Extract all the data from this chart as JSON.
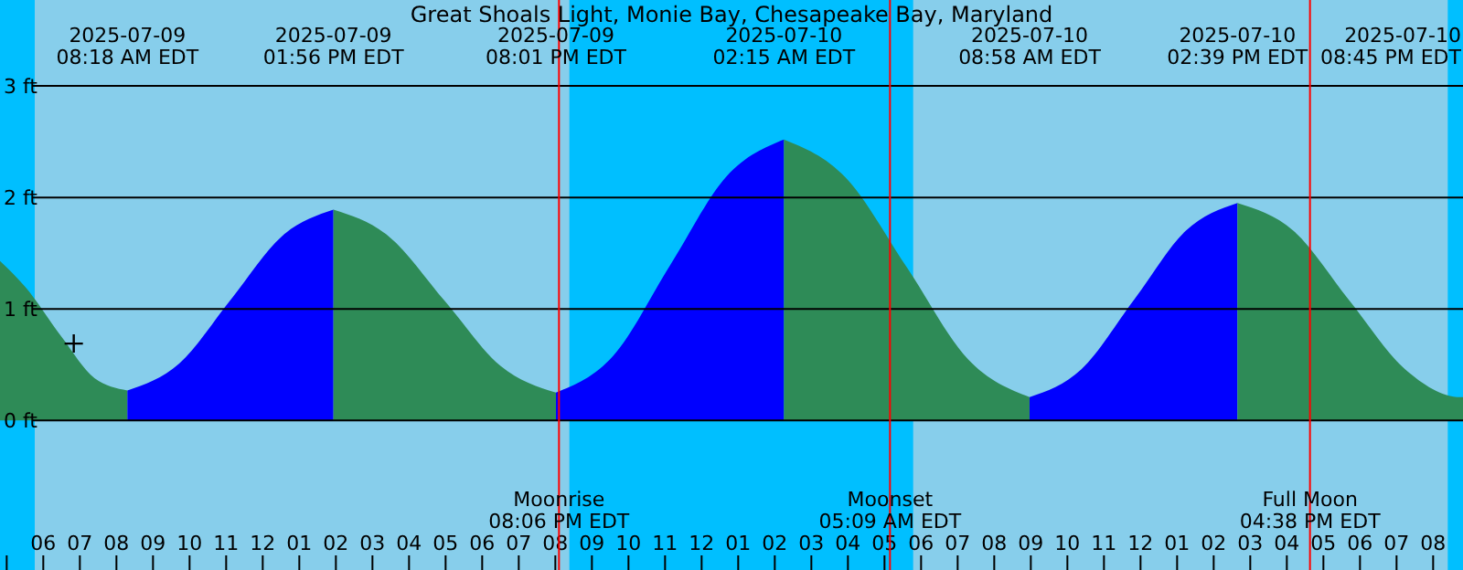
{
  "chart_data": {
    "type": "area",
    "title": "Great Shoals Light, Monie Bay, Chesapeake Bay, Maryland",
    "xlim": [
      "2025-07-09T04:49",
      "2025-07-10T20:49"
    ],
    "ylim": [
      -1.34,
      3.77
    ],
    "yticks": [
      {
        "value": 0,
        "label": "0 ft"
      },
      {
        "value": 1,
        "label": "1 ft"
      },
      {
        "value": 2,
        "label": "2 ft"
      },
      {
        "value": 3,
        "label": "3 ft"
      }
    ],
    "xticks": [
      {
        "value": "2025-07-09T05:00",
        "label": null
      },
      {
        "value": "2025-07-09T06:00",
        "label": "06"
      },
      {
        "value": "2025-07-09T07:00",
        "label": "07"
      },
      {
        "value": "2025-07-09T08:00",
        "label": "08"
      },
      {
        "value": "2025-07-09T09:00",
        "label": "09"
      },
      {
        "value": "2025-07-09T10:00",
        "label": "10"
      },
      {
        "value": "2025-07-09T11:00",
        "label": "11"
      },
      {
        "value": "2025-07-09T12:00",
        "label": "12"
      },
      {
        "value": "2025-07-09T13:00",
        "label": "01"
      },
      {
        "value": "2025-07-09T14:00",
        "label": "02"
      },
      {
        "value": "2025-07-09T15:00",
        "label": "03"
      },
      {
        "value": "2025-07-09T16:00",
        "label": "04"
      },
      {
        "value": "2025-07-09T17:00",
        "label": "05"
      },
      {
        "value": "2025-07-09T18:00",
        "label": "06"
      },
      {
        "value": "2025-07-09T19:00",
        "label": "07"
      },
      {
        "value": "2025-07-09T20:00",
        "label": "08"
      },
      {
        "value": "2025-07-09T21:00",
        "label": "09"
      },
      {
        "value": "2025-07-09T22:00",
        "label": "10"
      },
      {
        "value": "2025-07-09T23:00",
        "label": "11"
      },
      {
        "value": "2025-07-10T00:00",
        "label": "12"
      },
      {
        "value": "2025-07-10T01:00",
        "label": "01"
      },
      {
        "value": "2025-07-10T02:00",
        "label": "02"
      },
      {
        "value": "2025-07-10T03:00",
        "label": "03"
      },
      {
        "value": "2025-07-10T04:00",
        "label": "04"
      },
      {
        "value": "2025-07-10T05:00",
        "label": "05"
      },
      {
        "value": "2025-07-10T06:00",
        "label": "06"
      },
      {
        "value": "2025-07-10T07:00",
        "label": "07"
      },
      {
        "value": "2025-07-10T08:00",
        "label": "08"
      },
      {
        "value": "2025-07-10T09:00",
        "label": "09"
      },
      {
        "value": "2025-07-10T10:00",
        "label": "10"
      },
      {
        "value": "2025-07-10T11:00",
        "label": "11"
      },
      {
        "value": "2025-07-10T12:00",
        "label": "12"
      },
      {
        "value": "2025-07-10T13:00",
        "label": "01"
      },
      {
        "value": "2025-07-10T14:00",
        "label": "02"
      },
      {
        "value": "2025-07-10T15:00",
        "label": "03"
      },
      {
        "value": "2025-07-10T16:00",
        "label": "04"
      },
      {
        "value": "2025-07-10T17:00",
        "label": "05"
      },
      {
        "value": "2025-07-10T18:00",
        "label": "06"
      },
      {
        "value": "2025-07-10T19:00",
        "label": "07"
      },
      {
        "value": "2025-07-10T20:00",
        "label": "08"
      }
    ],
    "grid": "y",
    "bands": [
      {
        "axis": "x",
        "from": "2025-07-09T04:49",
        "to": "2025-07-09T05:46",
        "color": "#00bfff"
      },
      {
        "axis": "x",
        "from": "2025-07-09T20:23",
        "to": "2025-07-10T05:47",
        "color": "#00bfff"
      },
      {
        "axis": "x",
        "from": "2025-07-10T20:24",
        "to": "2025-07-10T20:49",
        "color": "#00bfff"
      }
    ],
    "series": [
      {
        "color": "#2e8b57",
        "x": [
          "2025-07-09T04:49",
          "2025-07-09T05:30",
          "2025-07-09T06:30",
          "2025-07-09T07:24",
          "2025-07-09T08:18"
        ],
        "values": [
          1.43,
          1.2,
          0.75,
          0.38,
          0.27
        ]
      },
      {
        "color": "#0000ff",
        "x": [
          "2025-07-09T08:18",
          "2025-07-09T09:43",
          "2025-07-09T11:07",
          "2025-07-09T12:31",
          "2025-07-09T13:56"
        ],
        "values": [
          0.27,
          0.51,
          1.08,
          1.65,
          1.89
        ]
      },
      {
        "color": "#2e8b57",
        "x": [
          "2025-07-09T13:56",
          "2025-07-09T15:27",
          "2025-07-09T16:59",
          "2025-07-09T18:30",
          "2025-07-09T20:01"
        ],
        "values": [
          1.89,
          1.65,
          1.07,
          0.49,
          0.25
        ]
      },
      {
        "color": "#0000ff",
        "x": [
          "2025-07-09T20:01",
          "2025-07-09T21:35",
          "2025-07-09T23:08",
          "2025-07-10T00:41",
          "2025-07-10T02:15"
        ],
        "values": [
          0.25,
          0.58,
          1.39,
          2.19,
          2.52
        ]
      },
      {
        "color": "#2e8b57",
        "x": [
          "2025-07-10T02:15",
          "2025-07-10T03:56",
          "2025-07-10T05:37",
          "2025-07-10T07:17",
          "2025-07-10T08:58"
        ],
        "values": [
          2.52,
          2.18,
          1.37,
          0.55,
          0.21
        ]
      },
      {
        "color": "#0000ff",
        "x": [
          "2025-07-10T08:58",
          "2025-07-10T10:23",
          "2025-07-10T11:49",
          "2025-07-10T13:14",
          "2025-07-10T14:39"
        ],
        "values": [
          0.21,
          0.46,
          1.08,
          1.7,
          1.95
        ]
      },
      {
        "color": "#2e8b57",
        "x": [
          "2025-07-10T14:39",
          "2025-07-10T16:11",
          "2025-07-10T17:42",
          "2025-07-10T19:14",
          "2025-07-10T20:45",
          "2025-07-10T20:49"
        ],
        "values": [
          1.95,
          1.7,
          1.08,
          0.46,
          0.21,
          0.21
        ]
      },
      {
        "type": "scatter",
        "marker": "cross",
        "color": "#000000",
        "x": [
          "2025-07-09T06:50"
        ],
        "values": [
          0.69
        ]
      }
    ],
    "ref_lines": [
      {
        "axis": "x",
        "value": "2025-07-09T20:06",
        "label": "Moonrise\n08:06 PM EDT",
        "color": "#ff0000"
      },
      {
        "axis": "x",
        "value": "2025-07-10T05:09",
        "label": "Moonset\n05:09 AM EDT",
        "color": "#ff0000"
      },
      {
        "axis": "x",
        "value": "2025-07-10T16:38",
        "label": "Full Moon\n04:38 PM EDT",
        "color": "#ff0000"
      }
    ],
    "annotations": [
      "2025-07-09\n08:18 AM EDT",
      "2025-07-09\n01:56 PM EDT",
      "2025-07-09\n08:01 PM EDT",
      "2025-07-10\n02:15 AM EDT",
      "2025-07-10\n08:58 AM EDT",
      "2025-07-10\n02:39 PM EDT",
      "2025-07-10\n08:45 PM EDT"
    ]
  }
}
